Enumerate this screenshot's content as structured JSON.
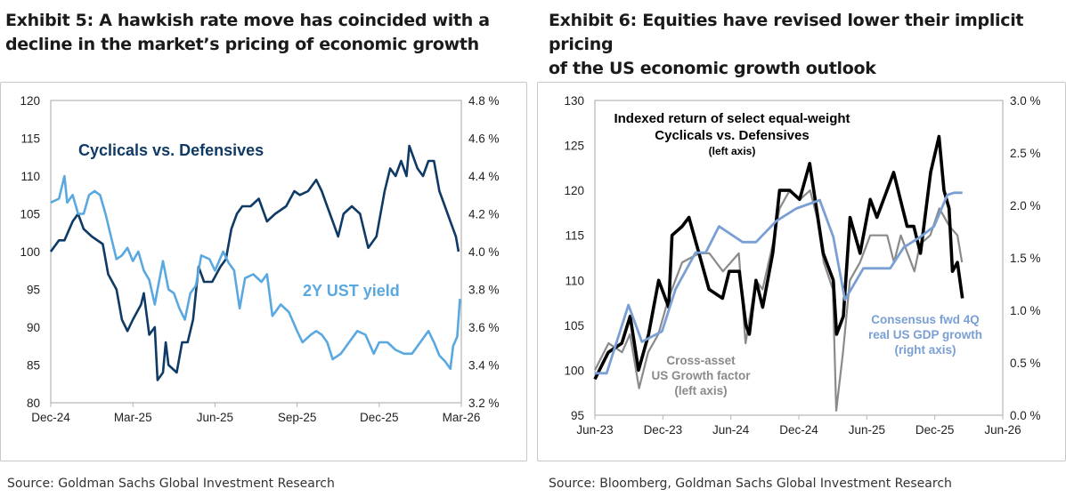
{
  "chart_data": [
    {
      "type": "line",
      "title": "Exhibit 5: A hawkish rate move has coincided with a decline in the market’s pricing of economic growth",
      "title_lines": [
        "Exhibit 5: A hawkish rate move has coincided with a",
        "decline in the market’s pricing of economic growth"
      ],
      "source": "Source: Goldman Sachs Global Investment Research",
      "x_unit": "months since Dec-24",
      "xlim": [
        0,
        15
      ],
      "x_ticks": [
        {
          "x": 0,
          "label": "Dec-24"
        },
        {
          "x": 3,
          "label": "Mar-25"
        },
        {
          "x": 6,
          "label": "Jun-25"
        },
        {
          "x": 9,
          "label": "Sep-25"
        },
        {
          "x": 12,
          "label": "Dec-25"
        },
        {
          "x": 15,
          "label": "Mar-26"
        }
      ],
      "ylim_left": [
        80,
        120
      ],
      "y_ticks_left": [
        "80",
        "85",
        "90",
        "95",
        "100",
        "105",
        "110",
        "115",
        "120"
      ],
      "ylim_right": [
        3.2,
        4.8
      ],
      "y_ticks_right": [
        "3.2 %",
        "3.4 %",
        "3.6 %",
        "3.8 %",
        "4.0 %",
        "4.2 %",
        "4.4 %",
        "4.6 %",
        "4.8 %"
      ],
      "grid": false,
      "series": [
        {
          "name": "Cyclicals vs. Defensives",
          "axis": "left",
          "color": "#0f3a66",
          "x": [
            0,
            0.3,
            0.5,
            0.8,
            1.0,
            1.2,
            1.5,
            1.9,
            2.1,
            2.4,
            2.6,
            2.8,
            3.0,
            3.3,
            3.4,
            3.6,
            3.8,
            3.9,
            4.1,
            4.2,
            4.3,
            4.6,
            4.8,
            5.0,
            5.2,
            5.4,
            5.6,
            5.9,
            6.2,
            6.4,
            6.6,
            6.8,
            7.0,
            7.3,
            7.6,
            7.9,
            8.2,
            8.6,
            8.9,
            9.1,
            9.4,
            9.7,
            9.9,
            10.1,
            10.3,
            10.5,
            10.7,
            11.0,
            11.3,
            11.5,
            11.6,
            11.9,
            12.2,
            12.4,
            12.6,
            12.8,
            13.0,
            13.1,
            13.4,
            13.6,
            13.8,
            14.0,
            14.2,
            14.4,
            14.6,
            14.8,
            14.9
          ],
          "y": [
            100,
            101.5,
            101.5,
            104,
            105,
            103,
            102,
            101,
            97,
            95,
            91,
            89.5,
            91,
            93,
            94.5,
            89,
            90,
            83,
            84,
            88,
            85,
            84,
            88,
            88,
            91,
            98,
            96,
            96,
            98,
            99,
            103,
            105,
            106,
            106,
            107,
            104,
            105,
            106,
            108,
            107.5,
            108,
            109.5,
            108,
            106,
            104,
            102,
            105,
            106,
            105,
            102,
            100.5,
            102,
            108,
            111,
            110,
            112,
            110,
            114,
            111,
            110,
            112,
            112,
            108,
            106,
            104,
            102,
            100
          ]
        },
        {
          "name": "2Y UST yield",
          "axis": "right",
          "color": "#5aa8e0",
          "x": [
            0,
            0.3,
            0.5,
            0.6,
            0.8,
            1.0,
            1.2,
            1.4,
            1.6,
            1.8,
            2.0,
            2.2,
            2.4,
            2.6,
            2.8,
            3.0,
            3.2,
            3.4,
            3.6,
            3.8,
            3.9,
            4.1,
            4.3,
            4.5,
            4.7,
            4.9,
            5.1,
            5.3,
            5.5,
            5.8,
            6.0,
            6.3,
            6.5,
            6.7,
            6.9,
            7.1,
            7.4,
            7.7,
            7.9,
            8.1,
            8.4,
            8.7,
            9.0,
            9.2,
            9.5,
            9.7,
            9.9,
            10.1,
            10.3,
            10.6,
            10.9,
            11.2,
            11.5,
            11.8,
            12.0,
            12.3,
            12.6,
            12.9,
            13.2,
            13.5,
            13.8,
            14.0,
            14.2,
            14.4,
            14.6,
            14.7,
            14.85,
            14.95
          ],
          "y": [
            4.26,
            4.28,
            4.4,
            4.26,
            4.3,
            4.2,
            4.2,
            4.3,
            4.32,
            4.3,
            4.2,
            4.08,
            3.96,
            3.98,
            4.02,
            3.95,
            4.0,
            3.9,
            3.85,
            3.72,
            3.8,
            3.95,
            3.8,
            3.78,
            3.7,
            3.64,
            3.78,
            3.82,
            3.98,
            3.96,
            3.9,
            4.0,
            3.94,
            3.9,
            3.7,
            3.86,
            3.88,
            3.84,
            3.88,
            3.66,
            3.72,
            3.68,
            3.58,
            3.52,
            3.56,
            3.58,
            3.56,
            3.52,
            3.43,
            3.46,
            3.52,
            3.58,
            3.56,
            3.46,
            3.52,
            3.52,
            3.48,
            3.46,
            3.46,
            3.52,
            3.58,
            3.52,
            3.45,
            3.42,
            3.38,
            3.5,
            3.55,
            3.75
          ]
        }
      ],
      "annotations": [
        "Cyclicals vs. Defensives",
        "2Y UST yield"
      ]
    },
    {
      "type": "line",
      "title": "Exhibit 6: Equities have revised lower their implicit pricing of the US economic growth outlook",
      "title_lines": [
        "Exhibit 6: Equities have revised lower their implicit pricing",
        "of the US economic growth outlook"
      ],
      "source": "Source: Bloomberg, Goldman Sachs Global Investment Research",
      "x_unit": "months since Jun-23",
      "xlim": [
        0,
        36
      ],
      "x_ticks": [
        {
          "x": 0,
          "label": "Jun-23"
        },
        {
          "x": 6,
          "label": "Dec-23"
        },
        {
          "x": 12,
          "label": "Jun-24"
        },
        {
          "x": 18,
          "label": "Dec-24"
        },
        {
          "x": 24,
          "label": "Jun-25"
        },
        {
          "x": 30,
          "label": "Dec-25"
        },
        {
          "x": 36,
          "label": "Jun-26"
        }
      ],
      "ylim_left": [
        95,
        130
      ],
      "y_ticks_left": [
        "95",
        "100",
        "105",
        "110",
        "115",
        "120",
        "125",
        "130"
      ],
      "ylim_right": [
        0,
        3
      ],
      "y_ticks_right": [
        "0.0 %",
        "0.5 %",
        "1.0 %",
        "1.5 %",
        "2.0 %",
        "2.5 %",
        "3.0 %"
      ],
      "grid": false,
      "series": [
        {
          "name": "Cross-asset US Growth factor",
          "axis": "left",
          "color": "#8a8a8a",
          "x": [
            0,
            1.2,
            2.4,
            3.1,
            3.9,
            4.7,
            5.6,
            6.5,
            7.7,
            9.2,
            10.1,
            11.3,
            12.7,
            13.3,
            14.2,
            14.8,
            15.7,
            16.3,
            17.2,
            18.1,
            19.0,
            19.6,
            20.2,
            21.0,
            21.3,
            21.9,
            22.5,
            23.4,
            24.3,
            25.8,
            26.4,
            27.0,
            28.2,
            28.7,
            29.6,
            30.4,
            31.3,
            32.0,
            32.4
          ],
          "y": [
            100,
            103,
            102,
            104,
            98,
            102,
            104,
            108,
            112,
            113,
            113,
            111,
            113,
            103,
            110,
            109,
            114,
            118,
            120,
            119,
            120,
            117,
            112,
            109,
            95.5,
            102,
            110,
            112,
            115,
            115,
            112,
            115,
            111,
            114,
            115,
            118,
            116,
            115,
            112
          ]
        },
        {
          "name": "Indexed return of select equal-weight Cyclicals vs. Defensives",
          "axis": "left",
          "color": "#000000",
          "x": [
            0,
            1.19,
            2.37,
            3.11,
            3.85,
            4.74,
            5.63,
            6.52,
            6.81,
            7.7,
            8.3,
            9.19,
            10.07,
            11.26,
            11.85,
            12.74,
            13.33,
            13.63,
            14.22,
            14.81,
            15.7,
            16.3,
            17.19,
            18.07,
            18.96,
            19.56,
            20.15,
            21.04,
            21.33,
            21.93,
            22.52,
            23.41,
            24.3,
            24.89,
            25.78,
            26.37,
            26.96,
            27.56,
            28.15,
            28.74,
            29.63,
            30.37,
            30.81,
            31.26,
            31.56,
            32.0,
            32.44
          ],
          "y": [
            99,
            102,
            103,
            106,
            100,
            104,
            110,
            107,
            115,
            116,
            117,
            113,
            109,
            108,
            111,
            111,
            105,
            104,
            110,
            107,
            113,
            120,
            120,
            119,
            123,
            118,
            113,
            110,
            104,
            106,
            117,
            113,
            119,
            117,
            120,
            122,
            119,
            116,
            116,
            113,
            122,
            126,
            120,
            118,
            111,
            112,
            108
          ]
        },
        {
          "name": "Consensus fwd 4Q real US GDP growth",
          "axis": "right",
          "color": "#7a9fd4",
          "x": [
            0,
            1.04,
            2.96,
            4.15,
            5.93,
            7.11,
            8.89,
            9.78,
            10.96,
            13.04,
            14.22,
            16.0,
            17.78,
            19.85,
            21.04,
            22.07,
            23.7,
            26.07,
            27.26,
            28.74,
            29.93,
            31.11,
            31.7,
            32.44
          ],
          "y": [
            0.4,
            0.4,
            1.05,
            0.7,
            0.8,
            1.2,
            1.55,
            1.55,
            1.8,
            1.65,
            1.65,
            1.85,
            1.97,
            2.05,
            1.7,
            1.1,
            1.4,
            1.4,
            1.6,
            1.7,
            1.8,
            2.1,
            2.12,
            2.12
          ]
        }
      ],
      "annotations": {
        "cyc": [
          "Indexed return of select equal-weight",
          "Cyclicals vs. Defensives",
          "(left axis)"
        ],
        "growth": [
          "Cross-asset",
          "US Growth factor",
          "(left axis)"
        ],
        "gdp": [
          "Consensus fwd 4Q",
          "real US GDP growth",
          "(right axis)"
        ]
      }
    }
  ]
}
